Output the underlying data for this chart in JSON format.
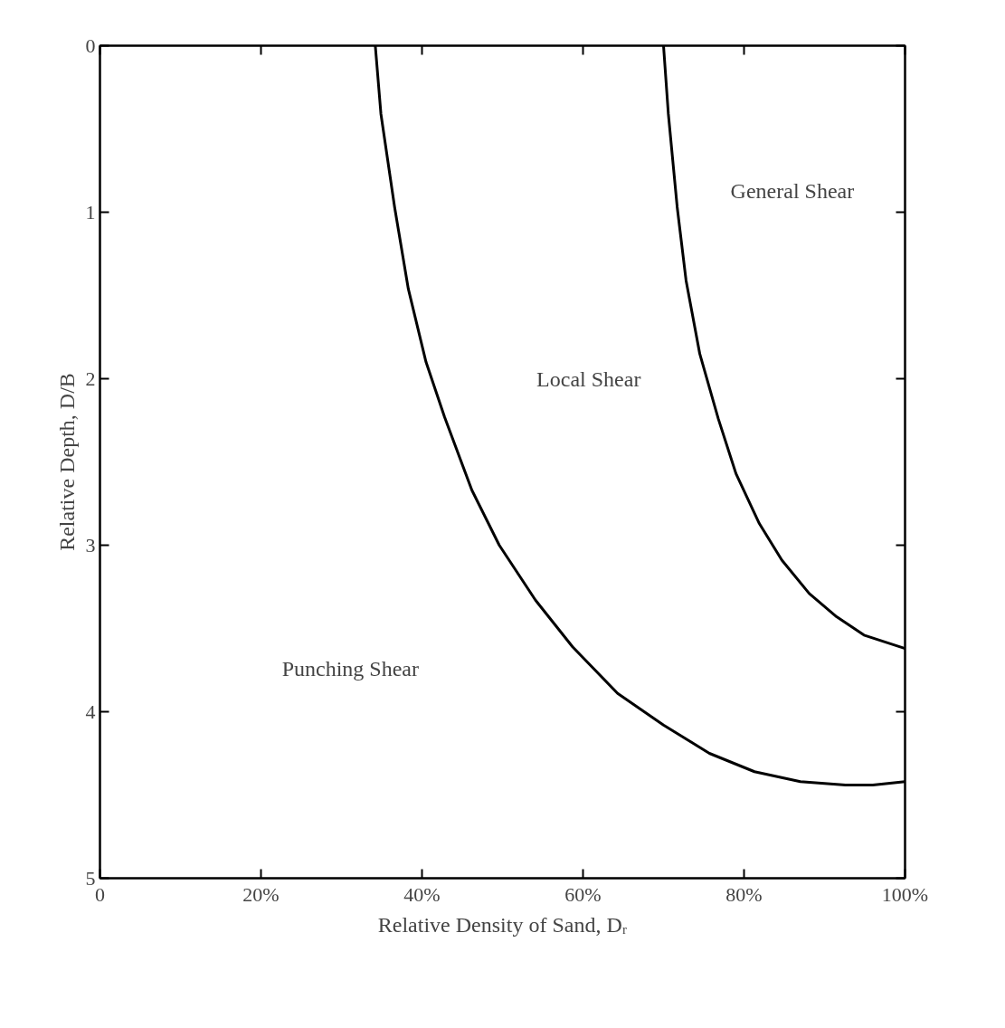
{
  "chart_data": {
    "type": "line",
    "xlabel": "Relative Density of Sand, Dᵣ",
    "ylabel": "Relative Depth, D/B",
    "xlim": [
      0,
      100
    ],
    "ylim": [
      5,
      0
    ],
    "xticks": [
      {
        "value": 0,
        "label": "0"
      },
      {
        "value": 20,
        "label": "20%"
      },
      {
        "value": 40,
        "label": "40%"
      },
      {
        "value": 60,
        "label": "60%"
      },
      {
        "value": 80,
        "label": "80%"
      },
      {
        "value": 100,
        "label": "100%"
      }
    ],
    "yticks": [
      0,
      1,
      2,
      3,
      4,
      5
    ],
    "grid": false,
    "marker": "none",
    "line_style": "solid",
    "series": [
      {
        "color": "#000000",
        "x": [
          34.2,
          34.9,
          36.6,
          38.3,
          40.5,
          42.8,
          46.2,
          49.6,
          54.1,
          58.7,
          64.3,
          70,
          75.7,
          81.3,
          87,
          92.6,
          96,
          100
        ],
        "values": [
          0,
          0.41,
          0.97,
          1.46,
          1.9,
          2.23,
          2.67,
          3.0,
          3.33,
          3.61,
          3.89,
          4.08,
          4.25,
          4.36,
          4.42,
          4.44,
          4.44,
          4.42
        ]
      },
      {
        "color": "#000000",
        "x": [
          70,
          70.6,
          71.7,
          72.8,
          74.5,
          76.8,
          79,
          81.9,
          84.7,
          88.1,
          91.5,
          94.9,
          100
        ],
        "values": [
          0,
          0.41,
          0.97,
          1.41,
          1.85,
          2.24,
          2.57,
          2.87,
          3.09,
          3.29,
          3.43,
          3.54,
          3.62
        ]
      }
    ],
    "annotations": [
      "General Shear",
      "Local Shear",
      "Punching Shear"
    ]
  }
}
